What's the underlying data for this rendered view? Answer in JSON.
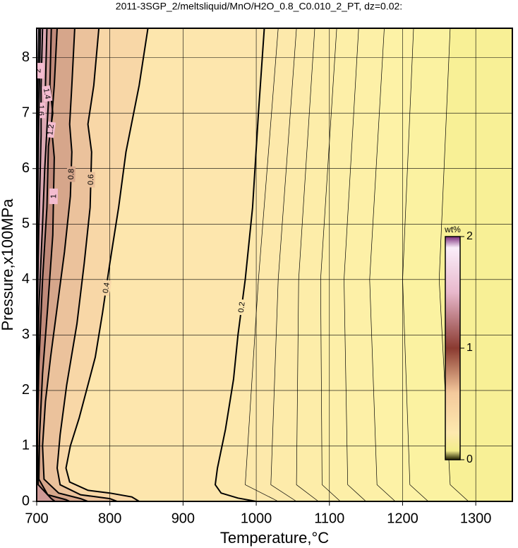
{
  "chart_data": {
    "type": "contour",
    "title": "2011-3SGP_2/meltsliquid/MnO/H2O_0.8_C0.010_2_PT, dz=0.02:",
    "xlabel": "Temperature,°C",
    "ylabel": "Pressure,x100MPa",
    "xlim": [
      700,
      1350
    ],
    "ylim": [
      0,
      8.53
    ],
    "xticks": [
      700,
      800,
      900,
      1000,
      1100,
      1200,
      1300
    ],
    "yticks": [
      0,
      1,
      2,
      3,
      4,
      5,
      6,
      7,
      8
    ],
    "grid": true,
    "colorbar": {
      "label": "wt%",
      "lim": [
        0,
        2
      ],
      "ticks": [
        0,
        1,
        2
      ]
    },
    "contours": [
      {
        "level": 0.04,
        "major": false,
        "T": [
          1265,
          1250,
          1265,
          1290
        ],
        "P": [
          8.53,
          4,
          0.3,
          0
        ]
      },
      {
        "level": 0.06,
        "major": false,
        "T": [
          1215,
          1200,
          1210,
          1235
        ],
        "P": [
          8.53,
          4,
          0.3,
          0
        ]
      },
      {
        "level": 0.08,
        "major": false,
        "T": [
          1175,
          1155,
          1165,
          1190
        ],
        "P": [
          8.53,
          4,
          0.3,
          0
        ]
      },
      {
        "level": 0.1,
        "major": false,
        "T": [
          1140,
          1120,
          1125,
          1150
        ],
        "P": [
          8.53,
          4,
          0.3,
          0
        ]
      },
      {
        "level": 0.12,
        "major": false,
        "T": [
          1110,
          1088,
          1090,
          1115
        ],
        "P": [
          8.53,
          4,
          0.3,
          0
        ]
      },
      {
        "level": 0.14,
        "major": false,
        "T": [
          1080,
          1058,
          1055,
          1085
        ],
        "P": [
          8.53,
          4,
          0.3,
          0
        ]
      },
      {
        "level": 0.16,
        "major": false,
        "T": [
          1055,
          1030,
          1020,
          1055
        ],
        "P": [
          8.53,
          4,
          0.3,
          0
        ]
      },
      {
        "level": 0.18,
        "major": false,
        "T": [
          1030,
          1003,
          985,
          1030
        ],
        "P": [
          8.53,
          4,
          0.3,
          0
        ]
      },
      {
        "level": 0.2,
        "major": true,
        "T": [
          1011,
          1003,
          995,
          985,
          975,
          969,
          958,
          947,
          944,
          952,
          975,
          1000
        ],
        "P": [
          8.53,
          7,
          5.3,
          4,
          3,
          2.2,
          1.3,
          0.6,
          0.3,
          0.15,
          0.06,
          0
        ]
      },
      {
        "level": 0.4,
        "major": true,
        "T": [
          852,
          840,
          822,
          812,
          800,
          790,
          780,
          772,
          758,
          746,
          740,
          745,
          770,
          800,
          830,
          840
        ],
        "P": [
          8.53,
          7.5,
          6.3,
          5.3,
          4.3,
          3.4,
          2.6,
          2.2,
          1.5,
          1.0,
          0.6,
          0.35,
          0.2,
          0.15,
          0.08,
          0
        ]
      },
      {
        "level": 0.6,
        "major": true,
        "T": [
          785,
          778,
          770,
          775,
          773,
          765,
          755,
          741,
          732,
          728,
          732,
          760,
          800,
          810
        ],
        "P": [
          8.53,
          7.5,
          6.8,
          6.3,
          5.3,
          4.3,
          3.2,
          2.1,
          1.2,
          0.6,
          0.3,
          0.12,
          0.05,
          0
        ]
      },
      {
        "level": 0.8,
        "major": true,
        "T": [
          752,
          748,
          745,
          748,
          746,
          738,
          728,
          719,
          712,
          708,
          710,
          730,
          760,
          770
        ],
        "P": [
          8.53,
          7.5,
          6.8,
          6.3,
          5.5,
          4.5,
          3.5,
          2.6,
          1.8,
          1.0,
          0.4,
          0.15,
          0.05,
          0
        ]
      },
      {
        "level": 1,
        "major": true,
        "T": [
          728,
          724,
          720,
          724,
          722,
          715,
          708,
          704,
          703,
          715,
          740,
          745
        ],
        "P": [
          8.53,
          7.5,
          6.8,
          6.2,
          4.8,
          3.5,
          2.3,
          1.2,
          0.4,
          0.12,
          0.03,
          0
        ]
      },
      {
        "level": 1.2,
        "major": true,
        "T": [
          720,
          718,
          722,
          716,
          714,
          708,
          703,
          701,
          702,
          720,
          725
        ],
        "P": [
          8.53,
          7.5,
          7,
          6.4,
          5.3,
          4,
          2.5,
          1.2,
          0.3,
          0.05,
          0
        ]
      },
      {
        "level": 1.4,
        "major": true,
        "T": [
          714,
          712,
          716,
          711,
          708,
          703,
          701,
          700.5
        ],
        "P": [
          8.53,
          7.5,
          7.2,
          6,
          5,
          3.5,
          2,
          1
        ]
      },
      {
        "level": 1.6,
        "major": true,
        "T": [
          708,
          706,
          706,
          703,
          701,
          700
        ],
        "P": [
          8.53,
          7.5,
          6.6,
          5,
          3.5,
          2
        ]
      },
      {
        "level": 1.8,
        "major": true,
        "T": [
          705,
          703,
          701,
          700
        ],
        "P": [
          8.53,
          7,
          5,
          3.5
        ]
      },
      {
        "level": 2,
        "major": true,
        "T": [
          703,
          701,
          700
        ],
        "P": [
          8.53,
          7,
          5.5
        ]
      }
    ]
  }
}
